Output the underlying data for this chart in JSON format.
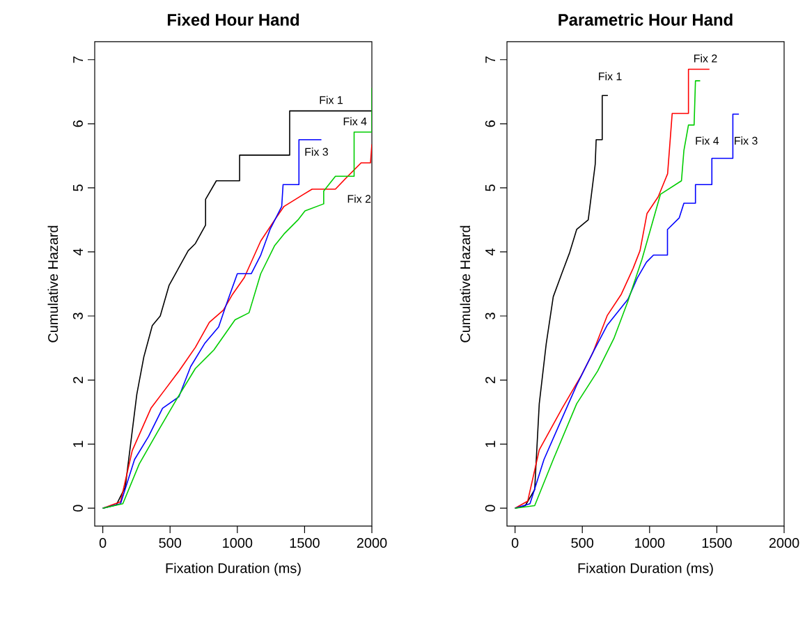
{
  "chart_data": [
    {
      "type": "line",
      "title": "Fixed Hour Hand",
      "xlabel": "Fixation Duration (ms)",
      "ylabel": "Cumulative Hazard",
      "xlim": [
        -60,
        2000
      ],
      "ylim": [
        -0.28,
        7.28
      ],
      "xticks": [
        0,
        500,
        1000,
        1500,
        2000
      ],
      "yticks": [
        0,
        1,
        2,
        3,
        4,
        5,
        6,
        7
      ],
      "series": [
        {
          "name": "Fix 1",
          "color": "#000000",
          "x": [
            0,
            100,
            167,
            253,
            305,
            368,
            427,
            493,
            580,
            635,
            688,
            764,
            764,
            844,
            1017,
            1017,
            1389,
            1389,
            2000
          ],
          "values": [
            0,
            0.05,
            0.33,
            1.78,
            2.36,
            2.85,
            3.0,
            3.48,
            3.81,
            4.02,
            4.13,
            4.42,
            4.82,
            5.11,
            5.11,
            5.51,
            5.51,
            6.2,
            6.2
          ]
        },
        {
          "name": "Fix 2",
          "color": "#ff0000",
          "x": [
            0,
            132,
            219,
            358,
            462,
            566,
            688,
            792,
            896,
            965,
            1052,
            1174,
            1278,
            1347,
            1493,
            1556,
            1729,
            1816,
            1920,
            1990,
            2000
          ],
          "values": [
            0,
            0.1,
            0.9,
            1.56,
            1.85,
            2.14,
            2.51,
            2.9,
            3.09,
            3.34,
            3.6,
            4.17,
            4.5,
            4.71,
            4.9,
            4.98,
            4.98,
            5.17,
            5.39,
            5.39,
            5.68
          ]
        },
        {
          "name": "Fix 3",
          "color": "#0000ff",
          "x": [
            0,
            132,
            236,
            340,
            444,
            566,
            653,
            757,
            861,
            913,
            1000,
            1104,
            1174,
            1243,
            1330,
            1340,
            1458,
            1458,
            1625
          ],
          "values": [
            0,
            0.07,
            0.76,
            1.12,
            1.56,
            1.74,
            2.21,
            2.57,
            2.83,
            3.15,
            3.66,
            3.66,
            3.95,
            4.35,
            4.71,
            5.05,
            5.05,
            5.75,
            5.75
          ]
        },
        {
          "name": "Fix 4",
          "color": "#00cd00",
          "x": [
            0,
            149,
            271,
            410,
            549,
            688,
            826,
            983,
            1087,
            1174,
            1278,
            1347,
            1451,
            1503,
            1642,
            1642,
            1729,
            1868,
            1868,
            2000,
            2000
          ],
          "values": [
            0,
            0.07,
            0.69,
            1.2,
            1.7,
            2.18,
            2.47,
            2.94,
            3.05,
            3.66,
            4.1,
            4.28,
            4.5,
            4.64,
            4.75,
            4.95,
            5.18,
            5.18,
            5.87,
            5.87,
            6.56
          ]
        }
      ]
    },
    {
      "type": "line",
      "title": "Parametric Hour Hand",
      "xlabel": "Fixation Duration (ms)",
      "ylabel": "Cumulative Hazard",
      "xlim": [
        -60,
        2000
      ],
      "ylim": [
        -0.28,
        7.28
      ],
      "xticks": [
        0,
        500,
        1000,
        1500,
        2000
      ],
      "yticks": [
        0,
        1,
        2,
        3,
        4,
        5,
        6,
        7
      ],
      "series": [
        {
          "name": "Fix 1",
          "color": "#000000",
          "x": [
            0,
            76,
            146,
            180,
            232,
            284,
            347,
            406,
            458,
            544,
            568,
            596,
            603,
            648,
            648,
            690
          ],
          "values": [
            0,
            0.04,
            0.29,
            1.63,
            2.57,
            3.3,
            3.66,
            3.99,
            4.35,
            4.5,
            4.9,
            5.37,
            5.75,
            5.75,
            6.44,
            6.44
          ]
        },
        {
          "name": "Fix 2",
          "color": "#ff0000",
          "x": [
            0,
            94,
            180,
            350,
            492,
            579,
            686,
            790,
            877,
            929,
            981,
            1064,
            1134,
            1168,
            1289,
            1289,
            1445
          ],
          "values": [
            0,
            0.11,
            0.91,
            1.56,
            2.07,
            2.43,
            3.01,
            3.34,
            3.74,
            4.02,
            4.6,
            4.86,
            5.22,
            6.16,
            6.16,
            6.85,
            6.85
          ]
        },
        {
          "name": "Fix 3",
          "color": "#0000ff",
          "x": [
            0,
            111,
            215,
            336,
            458,
            579,
            686,
            839,
            908,
            977,
            1029,
            1133,
            1133,
            1220,
            1255,
            1341,
            1341,
            1463,
            1463,
            1619,
            1619,
            1664
          ],
          "values": [
            0,
            0.07,
            0.76,
            1.34,
            1.92,
            2.43,
            2.86,
            3.26,
            3.59,
            3.84,
            3.95,
            3.95,
            4.35,
            4.53,
            4.76,
            4.76,
            5.05,
            5.05,
            5.46,
            5.46,
            6.15,
            6.15
          ]
        },
        {
          "name": "Fix 4",
          "color": "#00cd00",
          "x": [
            0,
            146,
            284,
            458,
            614,
            735,
            839,
            943,
            1012,
            1081,
            1237,
            1255,
            1289,
            1331,
            1341,
            1376
          ],
          "values": [
            0,
            0.04,
            0.76,
            1.63,
            2.14,
            2.65,
            3.23,
            3.88,
            4.39,
            4.9,
            5.11,
            5.58,
            5.98,
            5.98,
            6.67,
            6.67
          ]
        }
      ]
    }
  ]
}
